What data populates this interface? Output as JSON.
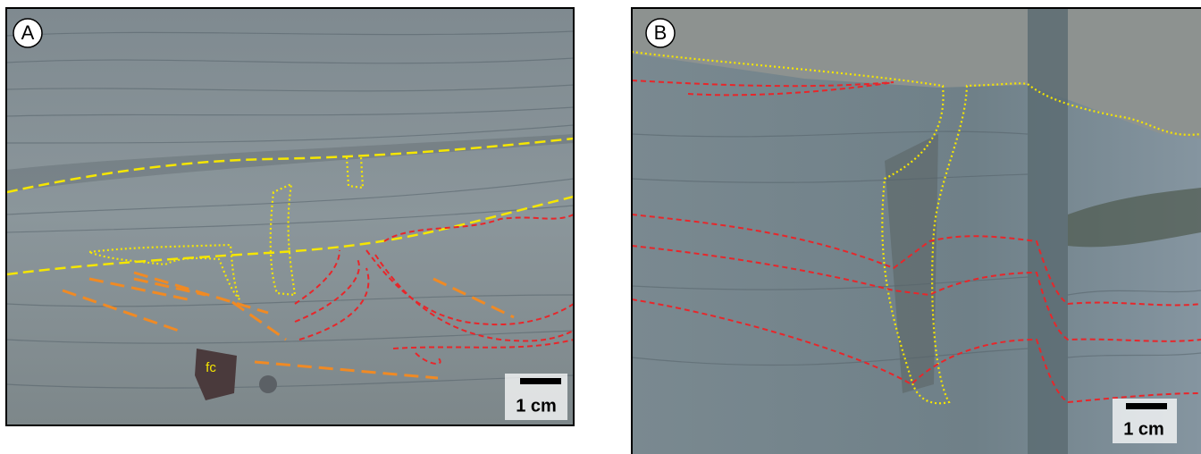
{
  "panels": [
    {
      "label": "A",
      "annotation": "fc",
      "scale_bar": "1 cm"
    },
    {
      "label": "B",
      "scale_bar": "1 cm"
    }
  ]
}
